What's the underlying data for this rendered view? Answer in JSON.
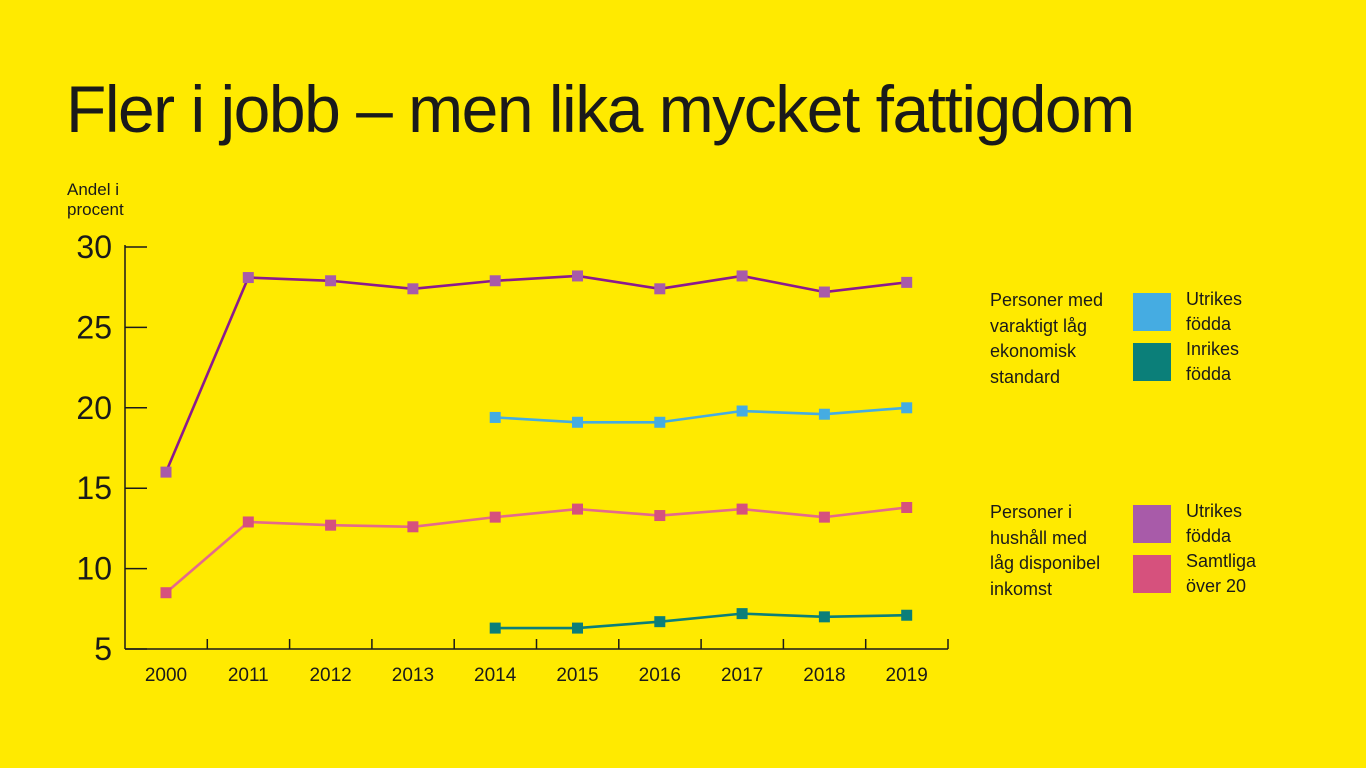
{
  "title": "Fler i jobb – men lika mycket fattigdom",
  "legend": {
    "groups": [
      {
        "description": [
          "Personer med",
          "varaktigt låg",
          "ekonomisk",
          "standard"
        ],
        "items": [
          {
            "label": [
              "Utrikes",
              "födda"
            ],
            "color": "#45ACE2"
          },
          {
            "label": [
              "Inrikes",
              "födda"
            ],
            "color": "#0B7F79"
          }
        ]
      },
      {
        "description": [
          "Personer i",
          "hushåll med",
          "låg disponibel",
          "inkomst"
        ],
        "items": [
          {
            "label": [
              "Utrikes",
              "födda"
            ],
            "color": "#A85BA9"
          },
          {
            "label": [
              "Samtliga",
              "över 20"
            ],
            "color": "#D6517D"
          }
        ]
      }
    ]
  },
  "chart_data": {
    "type": "line",
    "ylabel": "Andel i procent",
    "xlabel": "",
    "ylim": [
      5,
      30
    ],
    "yticks": [
      5,
      10,
      15,
      20,
      25,
      30
    ],
    "categories": [
      "2000",
      "2011",
      "2012",
      "2013",
      "2014",
      "2015",
      "2016",
      "2017",
      "2018",
      "2019"
    ],
    "grid": false,
    "legend_position": "right",
    "series": [
      {
        "name": "Personer i hushåll med låg disponibel inkomst – Utrikes födda",
        "color": "#A85BA9",
        "line_color": "#8B1A8E",
        "values": [
          16.0,
          28.1,
          27.9,
          27.4,
          27.9,
          28.2,
          27.4,
          28.2,
          27.2,
          27.8
        ]
      },
      {
        "name": "Personer med varaktigt låg ekonomisk standard – Utrikes födda",
        "color": "#45ACE2",
        "line_color": "#45ACE2",
        "values": [
          null,
          null,
          null,
          null,
          19.4,
          19.1,
          19.1,
          19.8,
          19.6,
          20.0
        ]
      },
      {
        "name": "Personer i hushåll med låg disponibel inkomst – Samtliga över 20",
        "color": "#D6517D",
        "line_color": "#E46A8C",
        "values": [
          8.5,
          12.9,
          12.7,
          12.6,
          13.2,
          13.7,
          13.3,
          13.7,
          13.2,
          13.8
        ]
      },
      {
        "name": "Personer med varaktigt låg ekonomisk standard – Inrikes födda",
        "color": "#0B7F79",
        "line_color": "#0B7F79",
        "values": [
          null,
          null,
          null,
          null,
          6.3,
          6.3,
          6.7,
          7.2,
          7.0,
          7.1
        ]
      }
    ]
  }
}
